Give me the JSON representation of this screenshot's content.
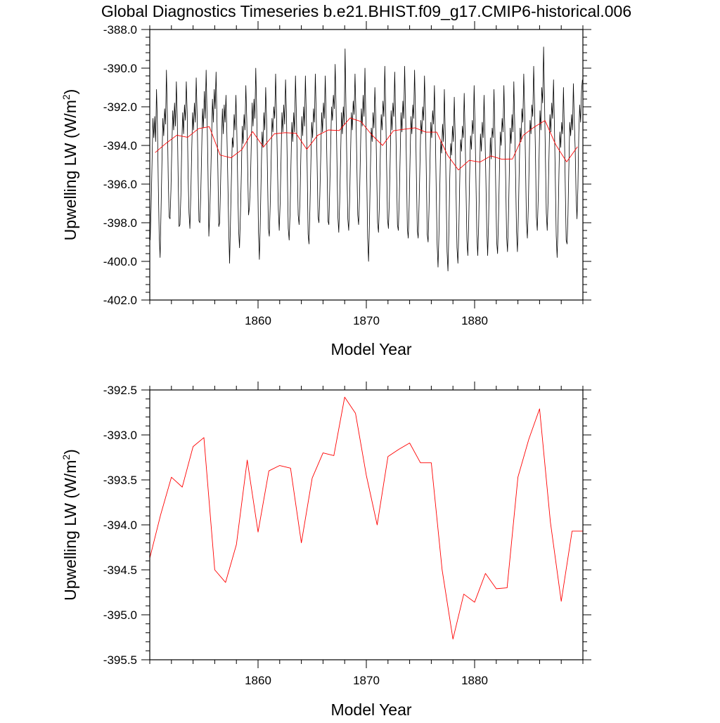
{
  "title": "Global Diagnostics Timeseries b.e21.BHIST.f09_g17.CMIP6-historical.006",
  "colors": {
    "monthly": "#000000",
    "annual": "#ff0000",
    "axes": "#000000"
  },
  "chart_data": [
    {
      "type": "line",
      "xlabel": "Model Year",
      "ylabel_main": "Upwelling LW (W/m",
      "ylabel_sup": "2",
      "ylabel_close": ")",
      "xlim": [
        1850,
        1890
      ],
      "ylim": [
        -402.0,
        -388.0
      ],
      "yticks": [
        "-388.0",
        "-390.0",
        "-392.0",
        "-394.0",
        "-396.0",
        "-398.0",
        "-400.0",
        "-402.0"
      ],
      "ytick_values": [
        -388,
        -390,
        -392,
        -394,
        -396,
        -398,
        -400,
        -402
      ],
      "xticks": [
        "1860",
        "1870",
        "1880"
      ],
      "xtick_values": [
        1860,
        1870,
        1880
      ],
      "series": [
        {
          "name": "monthly",
          "x_start": 1850.04,
          "x_step": 0.08333,
          "values": [
            -398.9,
            -397.2,
            -395.0,
            -392.6,
            -393.6,
            -392.5,
            -393.8,
            -391.1,
            -392.9,
            -396.1,
            -398.7,
            -399.8,
            -397.4,
            -394.9,
            -392.6,
            -393.5,
            -392.1,
            -392.9,
            -390.1,
            -392.5,
            -395.7,
            -397.7,
            -397.8,
            -396.3,
            -394.1,
            -392.2,
            -393.2,
            -391.8,
            -393.0,
            -390.7,
            -392.6,
            -395.7,
            -398.2,
            -398.1,
            -396.6,
            -393.9,
            -392.3,
            -393.4,
            -391.9,
            -392.7,
            -390.7,
            -392.3,
            -395.5,
            -397.5,
            -398.3,
            -396.6,
            -394.3,
            -392.3,
            -393.2,
            -391.8,
            -392.8,
            -390.5,
            -392.4,
            -395.2,
            -397.9,
            -398.0,
            -396.6,
            -394.4,
            -392.1,
            -393.1,
            -391.2,
            -392.6,
            -390.1,
            -392.4,
            -395.2,
            -398.7,
            -397.5,
            -395.8,
            -393.7,
            -391.6,
            -392.8,
            -391.1,
            -392.1,
            -390.2,
            -392.7,
            -395.2,
            -398.2,
            -398.0,
            -396.0,
            -393.9,
            -392.1,
            -393.4,
            -391.9,
            -392.8,
            -391.4,
            -393.4,
            -395.7,
            -398.3,
            -400.1,
            -397.9,
            -395.7,
            -393.6,
            -394.1,
            -392.4,
            -393.2,
            -391.4,
            -393.2,
            -396.0,
            -398.4,
            -399.3,
            -397.6,
            -395.5,
            -393.0,
            -393.9,
            -392.4,
            -393.2,
            -390.9,
            -392.6,
            -395.1,
            -397.6,
            -397.2,
            -396.1,
            -394.0,
            -391.8,
            -393.0,
            -391.6,
            -392.6,
            -390.0,
            -392.1,
            -395.0,
            -398.5,
            -399.9,
            -398.0,
            -395.5,
            -393.3,
            -394.1,
            -392.3,
            -393.2,
            -391.0,
            -392.7,
            -395.5,
            -398.3,
            -398.7,
            -397.1,
            -394.9,
            -392.6,
            -393.3,
            -392.0,
            -392.6,
            -390.3,
            -392.4,
            -395.0,
            -397.3,
            -398.4,
            -397.0,
            -394.8,
            -392.3,
            -393.3,
            -391.9,
            -392.9,
            -390.6,
            -392.3,
            -395.3,
            -398.3,
            -398.9,
            -397.5,
            -395.0,
            -392.8,
            -393.8,
            -392.3,
            -393.3,
            -390.4,
            -392.3,
            -395.0,
            -397.6,
            -398.1,
            -396.9,
            -394.5,
            -392.5,
            -393.5,
            -392.0,
            -393.0,
            -390.4,
            -392.4,
            -395.2,
            -398.6,
            -399.1,
            -397.3,
            -395.1,
            -392.8,
            -393.6,
            -392.1,
            -392.8,
            -390.3,
            -392.4,
            -395.0,
            -397.7,
            -398.0,
            -396.6,
            -394.6,
            -392.3,
            -393.3,
            -391.8,
            -392.6,
            -390.4,
            -392.6,
            -395.2,
            -397.9,
            -398.1,
            -396.2,
            -394.1,
            -392.0,
            -392.7,
            -391.4,
            -392.1,
            -389.8,
            -392.0,
            -394.9,
            -397.7,
            -398.5,
            -396.9,
            -394.7,
            -392.3,
            -393.4,
            -392.0,
            -392.9,
            -389.0,
            -392.1,
            -395.1,
            -397.8,
            -398.4,
            -396.9,
            -394.6,
            -392.3,
            -393.2,
            -391.7,
            -392.4,
            -390.3,
            -392.3,
            -394.9,
            -397.6,
            -398.1,
            -396.7,
            -394.4,
            -392.1,
            -393.0,
            -391.4,
            -392.5,
            -390.0,
            -392.6,
            -395.6,
            -398.8,
            -400.0,
            -398.0,
            -395.3,
            -393.1,
            -393.8,
            -392.3,
            -393.1,
            -391.0,
            -392.6,
            -395.4,
            -398.0,
            -398.5,
            -397.1,
            -394.6,
            -392.4,
            -393.2,
            -391.7,
            -392.5,
            -389.9,
            -392.1,
            -395.0,
            -397.8,
            -398.3,
            -396.9,
            -394.7,
            -392.2,
            -393.2,
            -391.8,
            -392.5,
            -390.2,
            -392.5,
            -395.2,
            -398.1,
            -398.4,
            -396.8,
            -394.6,
            -392.3,
            -393.3,
            -391.7,
            -392.6,
            -389.9,
            -392.1,
            -395.0,
            -398.3,
            -398.8,
            -397.1,
            -394.7,
            -392.5,
            -393.4,
            -391.9,
            -392.6,
            -390.1,
            -392.3,
            -395.5,
            -398.4,
            -398.8,
            -397.0,
            -394.9,
            -392.7,
            -393.4,
            -392.0,
            -392.7,
            -390.4,
            -392.3,
            -395.4,
            -398.6,
            -399.0,
            -397.3,
            -395.1,
            -392.8,
            -393.6,
            -392.2,
            -392.9,
            -390.9,
            -393.3,
            -396.3,
            -399.1,
            -400.3,
            -398.6,
            -396.1,
            -393.8,
            -394.4,
            -392.9,
            -393.8,
            -391.1,
            -393.4,
            -396.4,
            -399.5,
            -400.5,
            -398.5,
            -395.7,
            -393.9,
            -394.5,
            -393.0,
            -393.8,
            -391.5,
            -393.5,
            -396.5,
            -399.3,
            -400.1,
            -398.5,
            -396.0,
            -393.7,
            -394.3,
            -393.0,
            -393.6,
            -391.3,
            -393.4,
            -396.2,
            -398.9,
            -399.7,
            -398.0,
            -395.6,
            -393.5,
            -394.2,
            -392.7,
            -393.4,
            -390.9,
            -393.0,
            -395.8,
            -398.6,
            -399.7,
            -398.2,
            -395.7,
            -393.4,
            -394.3,
            -392.8,
            -393.6,
            -391.4,
            -393.4,
            -395.7,
            -398.3,
            -399.7,
            -398.0,
            -395.3,
            -393.6,
            -394.7,
            -393.1,
            -393.6,
            -391.1,
            -393.3,
            -396.3,
            -399.0,
            -399.6,
            -397.8,
            -395.4,
            -393.3,
            -394.0,
            -392.6,
            -393.3,
            -390.9,
            -393.1,
            -395.8,
            -398.7,
            -399.5,
            -397.8,
            -395.4,
            -393.1,
            -393.9,
            -392.4,
            -393.3,
            -390.7,
            -392.9,
            -395.7,
            -398.5,
            -399.5,
            -397.7,
            -395.2,
            -393.1,
            -393.8,
            -392.1,
            -392.8,
            -390.3,
            -392.2,
            -395.1,
            -398.0,
            -398.8,
            -397.3,
            -394.9,
            -392.7,
            -393.4,
            -391.9,
            -392.5,
            -389.9,
            -391.9,
            -394.5,
            -397.7,
            -398.4,
            -396.8,
            -394.6,
            -392.2,
            -393.2,
            -391.0,
            -391.8,
            -388.9,
            -391.6,
            -394.6,
            -397.5,
            -398.4,
            -396.8,
            -394.5,
            -392.4,
            -393.3,
            -391.8,
            -392.6,
            -390.6,
            -393.0,
            -395.8,
            -398.7,
            -399.8,
            -398.1,
            -395.5,
            -393.3,
            -394.1,
            -392.8,
            -393.4,
            -391.0,
            -393.2,
            -396.1,
            -398.9,
            -399.1,
            -397.6,
            -395.1,
            -392.8,
            -393.5,
            -392.4,
            -393.2,
            -390.8,
            -392.7,
            -394.2,
            -396.6,
            -397.8,
            -396.2,
            -393.4,
            -391.9,
            -392.8,
            -391.2,
            -390.6
          ]
        },
        {
          "name": "annual",
          "x": [
            1850.5,
            1851.5,
            1852.5,
            1853.5,
            1854.5,
            1855.5,
            1856.5,
            1857.5,
            1858.5,
            1859.5,
            1860.5,
            1861.5,
            1862.5,
            1863.5,
            1864.5,
            1865.5,
            1866.5,
            1867.5,
            1868.5,
            1869.5,
            1870.5,
            1871.5,
            1872.5,
            1873.5,
            1874.5,
            1875.5,
            1876.5,
            1877.5,
            1878.5,
            1879.5,
            1880.5,
            1881.5,
            1882.5,
            1883.5,
            1884.5,
            1885.5,
            1886.5,
            1887.5,
            1888.5,
            1889.5
          ],
          "values": [
            -394.37,
            -393.89,
            -393.47,
            -393.58,
            -393.13,
            -393.03,
            -394.5,
            -394.64,
            -394.22,
            -393.28,
            -394.08,
            -393.4,
            -393.34,
            -393.37,
            -394.2,
            -393.48,
            -393.2,
            -393.23,
            -392.58,
            -392.76,
            -393.45,
            -394.0,
            -393.24,
            -393.16,
            -393.09,
            -393.31,
            -393.31,
            -394.5,
            -395.27,
            -394.77,
            -394.86,
            -394.54,
            -394.71,
            -394.7,
            -393.47,
            -393.05,
            -392.71,
            -393.97,
            -394.85,
            -394.07
          ]
        }
      ]
    },
    {
      "type": "line",
      "xlabel": "Model Year",
      "ylabel_main": "Upwelling LW (W/m",
      "ylabel_sup": "2",
      "ylabel_close": ")",
      "xlim": [
        1850,
        1890
      ],
      "ylim": [
        -395.5,
        -392.5
      ],
      "yticks": [
        "-392.5",
        "-393.0",
        "-393.5",
        "-394.0",
        "-394.5",
        "-395.0",
        "-395.5"
      ],
      "ytick_values": [
        -392.5,
        -393.0,
        -393.5,
        -394.0,
        -394.5,
        -395.0,
        -395.5
      ],
      "xticks": [
        "1860",
        "1870",
        "1880"
      ],
      "xtick_values": [
        1860,
        1870,
        1880
      ],
      "series": [
        {
          "name": "annual",
          "x": [
            1850.0,
            1851.0,
            1852.0,
            1853.0,
            1854.0,
            1855.0,
            1856.0,
            1857.0,
            1858.0,
            1859.0,
            1860.0,
            1861.0,
            1862.0,
            1863.0,
            1864.0,
            1865.0,
            1866.0,
            1867.0,
            1868.0,
            1869.0,
            1870.0,
            1871.0,
            1872.0,
            1873.0,
            1874.0,
            1875.0,
            1876.0,
            1877.0,
            1878.0,
            1879.0,
            1880.0,
            1881.0,
            1882.0,
            1883.0,
            1884.0,
            1885.0,
            1886.0,
            1887.0,
            1888.0,
            1889.0,
            1890.0
          ],
          "values": [
            -394.37,
            -393.89,
            -393.47,
            -393.58,
            -393.13,
            -393.03,
            -394.5,
            -394.64,
            -394.22,
            -393.28,
            -394.08,
            -393.4,
            -393.34,
            -393.37,
            -394.2,
            -393.48,
            -393.2,
            -393.23,
            -392.58,
            -392.76,
            -393.45,
            -394.0,
            -393.24,
            -393.16,
            -393.09,
            -393.31,
            -393.31,
            -394.5,
            -395.27,
            -394.77,
            -394.86,
            -394.54,
            -394.71,
            -394.7,
            -393.47,
            -393.05,
            -392.71,
            -393.97,
            -394.85,
            -394.07,
            -394.07
          ]
        }
      ]
    }
  ]
}
